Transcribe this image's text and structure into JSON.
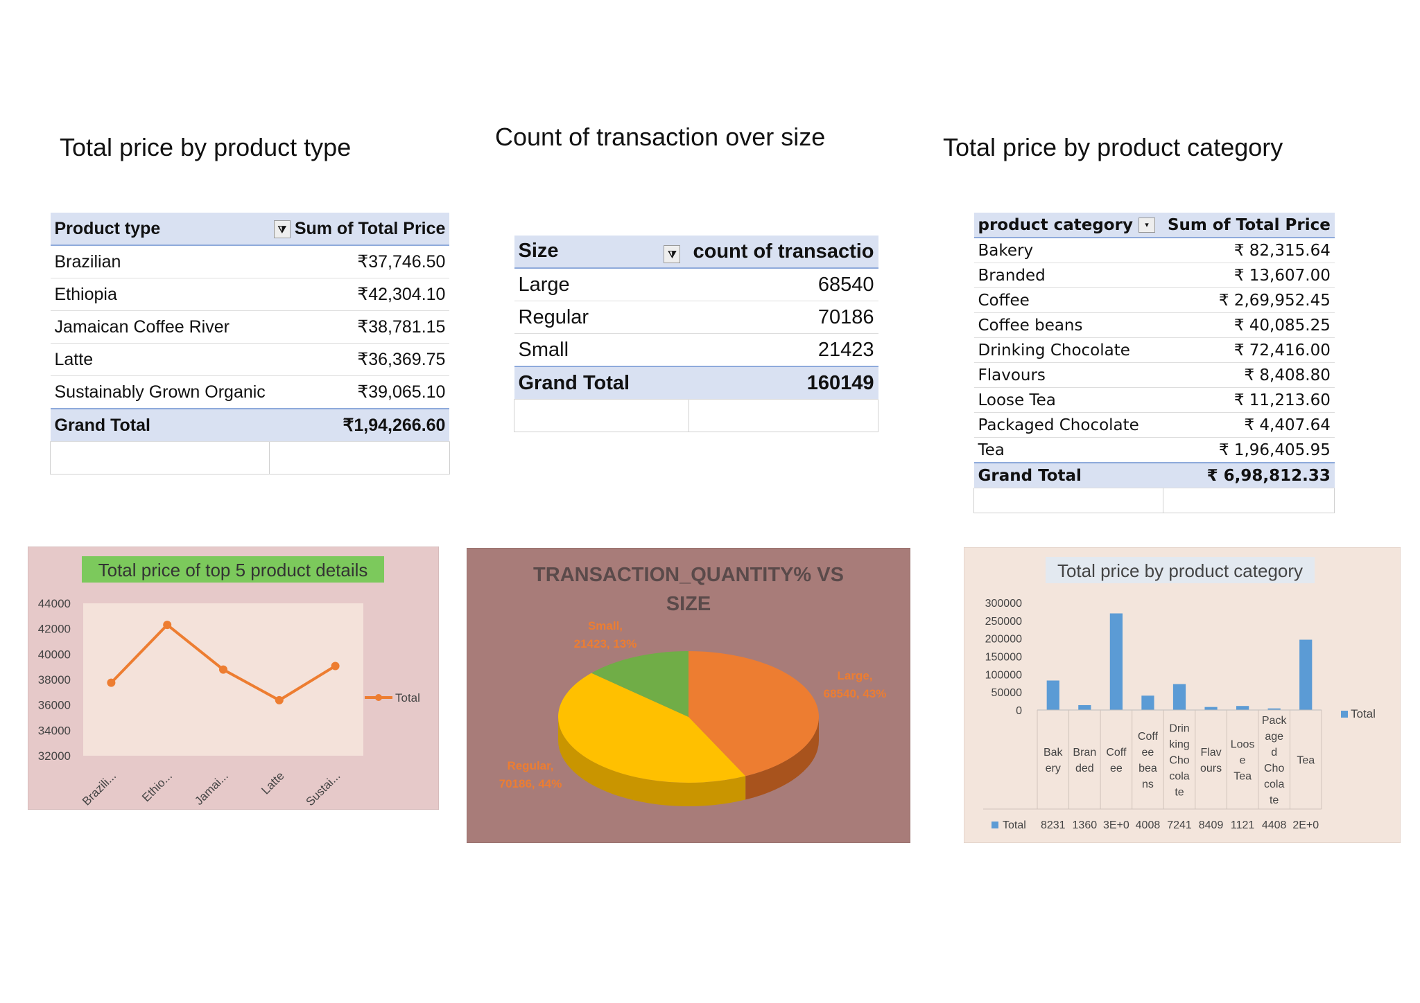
{
  "titles": {
    "product_type": "Total price by product type",
    "size": "Count of transaction over size",
    "category": "Total price by product category"
  },
  "table_product_type": {
    "headers": [
      "Product type",
      "Sum of Total Price"
    ],
    "rows": [
      [
        "Brazilian",
        "₹37,746.50"
      ],
      [
        "Ethiopia",
        "₹42,304.10"
      ],
      [
        "Jamaican Coffee River",
        "₹38,781.15"
      ],
      [
        "Latte",
        "₹36,369.75"
      ],
      [
        "Sustainably Grown Organic",
        "₹39,065.10"
      ]
    ],
    "total": [
      "Grand Total",
      "₹1,94,266.60"
    ]
  },
  "table_size": {
    "headers": [
      "Size",
      "count of transactio"
    ],
    "rows": [
      [
        "Large",
        "68540"
      ],
      [
        "Regular",
        "70186"
      ],
      [
        "Small",
        "21423"
      ]
    ],
    "total": [
      "Grand Total",
      "160149"
    ]
  },
  "table_category": {
    "headers": [
      "product category",
      "Sum of Total Price"
    ],
    "rows": [
      [
        "Bakery",
        "₹ 82,315.64"
      ],
      [
        "Branded",
        "₹ 13,607.00"
      ],
      [
        "Coffee",
        "₹ 2,69,952.45"
      ],
      [
        "Coffee beans",
        "₹ 40,085.25"
      ],
      [
        "Drinking Chocolate",
        "₹ 72,416.00"
      ],
      [
        "Flavours",
        "₹ 8,408.80"
      ],
      [
        "Loose Tea",
        "₹ 11,213.60"
      ],
      [
        "Packaged Chocolate",
        "₹ 4,407.64"
      ],
      [
        "Tea",
        "₹ 1,96,405.95"
      ]
    ],
    "total": [
      "Grand Total",
      "₹ 6,98,812.33"
    ]
  },
  "colors": {
    "header_bg": "#d9e1f2",
    "line_panel_bg": "#e6c9c9",
    "line_plot_bg": "#f4e2da",
    "line_color": "#ed7d31",
    "title_green": "#7cc95c",
    "pie_panel_bg": "#a87c79",
    "bar_panel_bg": "#f3e5dc",
    "bar_color": "#5b9bd5",
    "pie_large": "#ed7d31",
    "pie_regular": "#ffc000",
    "pie_small": "#70ad47"
  },
  "chart_data": [
    {
      "type": "line",
      "title": "Total price of top 5 product details",
      "categories": [
        "Brazili...",
        "Ethio...",
        "Jamai...",
        "Latte",
        "Sustai..."
      ],
      "series": [
        {
          "name": "Total",
          "values": [
            37746.5,
            42304.1,
            38781.15,
            36369.75,
            39065.1
          ]
        }
      ],
      "yticks": [
        "44000",
        "42000",
        "40000",
        "38000",
        "36000",
        "34000",
        "32000"
      ],
      "ylim": [
        32000,
        44000
      ],
      "legend": "right",
      "grid": false
    },
    {
      "type": "pie",
      "title": "TRANSACTION_QUANTITY% VS SIZE",
      "slices": [
        {
          "name": "Large",
          "value": 68540,
          "label": [
            "Large,",
            "68540, 43%"
          ]
        },
        {
          "name": "Regular",
          "value": 70186,
          "label": [
            "Regular,",
            "70186, 44%"
          ]
        },
        {
          "name": "Small",
          "value": 21423,
          "label": [
            "Small,",
            "21423, 13%"
          ]
        }
      ]
    },
    {
      "type": "bar",
      "title": "Total price by product category",
      "categories": [
        "Bakery",
        "Branded",
        "Coffee",
        "Coffee beans",
        "Drinking Chocolate",
        "Flavours",
        "Loose Tea",
        "Packaged Chocolate",
        "Tea"
      ],
      "category_labels": [
        [
          "Bak",
          "ery"
        ],
        [
          "Bran",
          "ded"
        ],
        [
          "Coff",
          "ee"
        ],
        [
          "Coff",
          "ee",
          "bea",
          "ns"
        ],
        [
          "Drin",
          "king",
          "Cho",
          "cola",
          "te"
        ],
        [
          "Flav",
          "ours"
        ],
        [
          "Loos",
          "e",
          "Tea"
        ],
        [
          "Pack",
          "age",
          "d",
          "Cho",
          "cola",
          "te"
        ],
        [
          "Tea"
        ]
      ],
      "series": [
        {
          "name": "Total",
          "values": [
            82315.64,
            13607,
            269952.45,
            40085.25,
            72416,
            8408.8,
            11213.6,
            4407.64,
            196405.95
          ]
        }
      ],
      "table_values": [
        "8231",
        "1360",
        "3E+0",
        "4008",
        "7241",
        "8409",
        "1121",
        "4408",
        "2E+0"
      ],
      "yticks": [
        "300000",
        "250000",
        "200000",
        "150000",
        "100000",
        "50000",
        "0"
      ],
      "ylim": [
        0,
        300000
      ],
      "legend": "right",
      "grid": false
    }
  ]
}
